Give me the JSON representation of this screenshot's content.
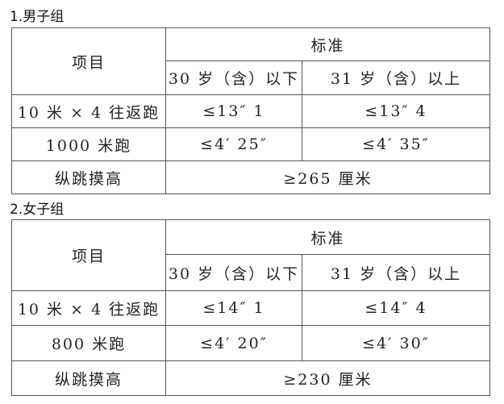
{
  "sections": [
    {
      "title": "1.男子组",
      "header": {
        "item": "项目",
        "standard": "标准",
        "age_low": "30 岁（含）以下",
        "age_high": "31 岁（含）以上"
      },
      "rows": [
        {
          "item": "10 米 × 4 往返跑",
          "low": "≤13″ 1",
          "high": "≤13″ 4"
        },
        {
          "item": "1000 米跑",
          "low": "≤4′ 25″",
          "high": "≤4′ 35″"
        }
      ],
      "jump": {
        "item": "纵跳摸高",
        "value": "≥265 厘米"
      }
    },
    {
      "title": "2.女子组",
      "header": {
        "item": "项目",
        "standard": "标准",
        "age_low": "30 岁（含）以下",
        "age_high": "31 岁（含）以上"
      },
      "rows": [
        {
          "item": "10 米 × 4 往返跑",
          "low": "≤14″ 1",
          "high": "≤14″ 4"
        },
        {
          "item": "800 米跑",
          "low": "≤4′ 20″",
          "high": "≤4′ 30″"
        }
      ],
      "jump": {
        "item": "纵跳摸高",
        "value": "≥230 厘米"
      }
    }
  ]
}
